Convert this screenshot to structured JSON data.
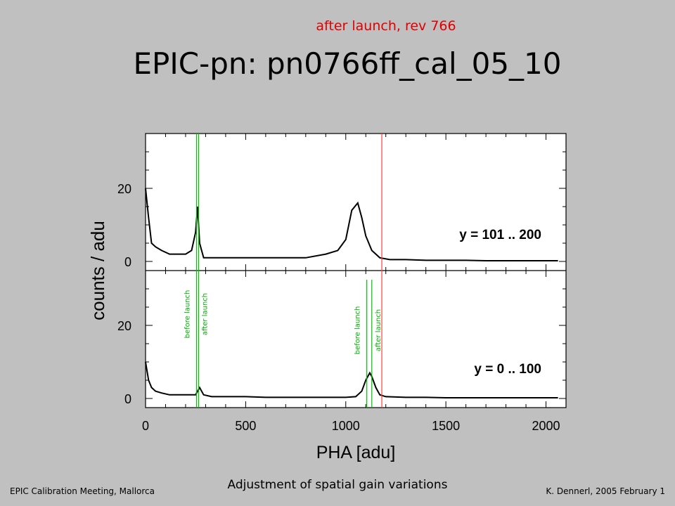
{
  "slide": {
    "subtitle": "after launch, rev 766",
    "title": "EPIC-pn: pn0766ff_cal_05_10"
  },
  "footer": {
    "left": "EPIC Calibration Meeting, Mallorca",
    "center": "Adjustment of spatial gain variations",
    "right": "K. Dennerl, 2005 February 1"
  },
  "chart_data": {
    "type": "line",
    "xlabel": "PHA  [adu]",
    "ylabel": "counts / adu",
    "xlim": [
      0,
      2100
    ],
    "xticks": [
      0,
      500,
      1000,
      1500,
      2000
    ],
    "panels": [
      {
        "label": "y = 101 .. 200",
        "ylim": [
          0,
          35
        ],
        "yticks": [
          0,
          20
        ],
        "spectrum": {
          "x": [
            0,
            15,
            30,
            50,
            80,
            120,
            160,
            200,
            230,
            250,
            260,
            270,
            290,
            330,
            400,
            500,
            600,
            700,
            800,
            900,
            960,
            1000,
            1030,
            1060,
            1080,
            1100,
            1130,
            1170,
            1220,
            1300,
            1400,
            1500,
            1600,
            1700,
            1800,
            1900,
            2000,
            2060
          ],
          "y": [
            20,
            12,
            5,
            4,
            3,
            2,
            2,
            2,
            3,
            8,
            15,
            5,
            1,
            1,
            1,
            1,
            1,
            1,
            1,
            2,
            3,
            6,
            14,
            16,
            12,
            7,
            3,
            1,
            0.5,
            0.5,
            0.3,
            0.3,
            0.3,
            0.2,
            0.2,
            0.2,
            0.2,
            0.2
          ]
        }
      },
      {
        "label": "y = 0 .. 100",
        "ylim": [
          0,
          35
        ],
        "yticks": [
          0,
          20
        ],
        "spectrum": {
          "x": [
            0,
            15,
            30,
            50,
            80,
            120,
            160,
            200,
            250,
            270,
            290,
            330,
            400,
            500,
            600,
            700,
            800,
            900,
            1000,
            1050,
            1080,
            1100,
            1120,
            1130,
            1150,
            1170,
            1200,
            1300,
            1400,
            1500,
            1600,
            1700,
            1800,
            1900,
            2000,
            2060
          ],
          "y": [
            10,
            5,
            3,
            2,
            1.5,
            1,
            1,
            1,
            1,
            3,
            1,
            0.5,
            0.5,
            0.5,
            0.3,
            0.3,
            0.3,
            0.3,
            0.3,
            0.5,
            2,
            5,
            7,
            6,
            3,
            1,
            0.5,
            0.3,
            0.3,
            0.2,
            0.2,
            0.2,
            0.2,
            0.2,
            0.2,
            0.2
          ]
        }
      }
    ],
    "markers": [
      {
        "x": 255,
        "label": "before launch",
        "color": "#00c000",
        "panel": "both"
      },
      {
        "x": 265,
        "label": "after launch",
        "color": "#00c000",
        "panel": "both"
      },
      {
        "x": 1105,
        "label": "before launch",
        "color": "#00c000",
        "panel": "lower"
      },
      {
        "x": 1130,
        "label": "after launch",
        "color": "#00c000",
        "panel": "lower"
      },
      {
        "x": 1180,
        "label": "",
        "color": "#ff4040",
        "panel": "both"
      }
    ],
    "grid": false,
    "legend": "none"
  }
}
